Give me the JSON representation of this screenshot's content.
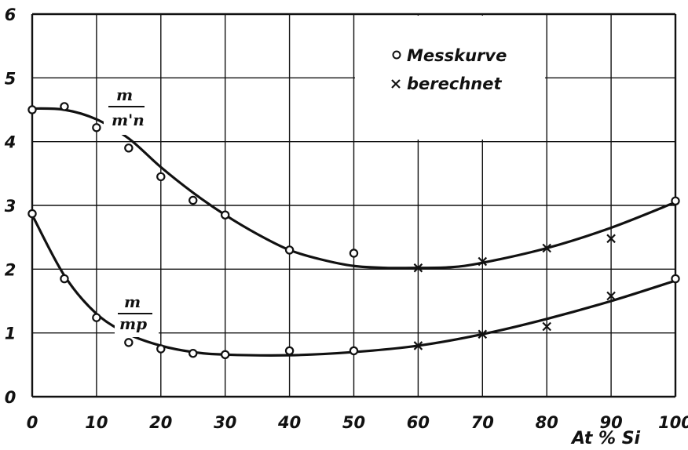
{
  "chart_data": {
    "type": "scatter",
    "title": "",
    "xlabel": "At % Si",
    "ylabel": "",
    "xlim": [
      0,
      100
    ],
    "ylim": [
      0,
      6
    ],
    "x_ticks": [
      "0",
      "10",
      "20",
      "30",
      "40",
      "50",
      "60",
      "70",
      "80",
      "90",
      "100"
    ],
    "y_ticks": [
      "0",
      "1",
      "2",
      "3",
      "4",
      "5",
      "6"
    ],
    "grid": true,
    "legend": {
      "position": "top-right",
      "entries": [
        {
          "marker": "circle",
          "label": "Messkurve"
        },
        {
          "marker": "cross",
          "label": "berechnet"
        }
      ]
    },
    "curve_labels": [
      {
        "numerator": "m",
        "denominator": "m'n"
      },
      {
        "numerator": "m",
        "denominator": "mp"
      }
    ],
    "series": [
      {
        "curve": "m/m'n",
        "measured": [
          [
            0,
            4.5
          ],
          [
            5,
            4.55
          ],
          [
            10,
            4.22
          ],
          [
            15,
            3.9
          ],
          [
            20,
            3.45
          ],
          [
            25,
            3.08
          ],
          [
            30,
            2.85
          ],
          [
            40,
            2.3
          ],
          [
            50,
            2.25
          ],
          [
            100,
            3.07
          ]
        ],
        "calculated": [
          [
            60,
            2.02
          ],
          [
            70,
            2.12
          ],
          [
            80,
            2.33
          ],
          [
            90,
            2.48
          ]
        ],
        "fit": [
          [
            0,
            4.52
          ],
          [
            5,
            4.5
          ],
          [
            10,
            4.35
          ],
          [
            15,
            4.05
          ],
          [
            20,
            3.6
          ],
          [
            25,
            3.2
          ],
          [
            30,
            2.85
          ],
          [
            35,
            2.55
          ],
          [
            40,
            2.3
          ],
          [
            45,
            2.15
          ],
          [
            50,
            2.05
          ],
          [
            55,
            2.02
          ],
          [
            60,
            2.02
          ],
          [
            65,
            2.03
          ],
          [
            70,
            2.1
          ],
          [
            80,
            2.33
          ],
          [
            90,
            2.65
          ],
          [
            100,
            3.05
          ]
        ]
      },
      {
        "curve": "m/mp",
        "measured": [
          [
            0,
            2.87
          ],
          [
            5,
            1.85
          ],
          [
            10,
            1.24
          ],
          [
            15,
            0.85
          ],
          [
            20,
            0.75
          ],
          [
            25,
            0.68
          ],
          [
            30,
            0.66
          ],
          [
            40,
            0.72
          ],
          [
            50,
            0.72
          ],
          [
            100,
            1.85
          ]
        ],
        "calculated": [
          [
            60,
            0.8
          ],
          [
            70,
            0.98
          ],
          [
            80,
            1.1
          ],
          [
            90,
            1.58
          ]
        ],
        "fit": [
          [
            0,
            2.85
          ],
          [
            5,
            1.9
          ],
          [
            10,
            1.3
          ],
          [
            15,
            0.98
          ],
          [
            20,
            0.8
          ],
          [
            25,
            0.7
          ],
          [
            30,
            0.66
          ],
          [
            40,
            0.65
          ],
          [
            50,
            0.7
          ],
          [
            60,
            0.8
          ],
          [
            70,
            0.98
          ],
          [
            80,
            1.22
          ],
          [
            90,
            1.5
          ],
          [
            100,
            1.82
          ]
        ]
      }
    ]
  }
}
